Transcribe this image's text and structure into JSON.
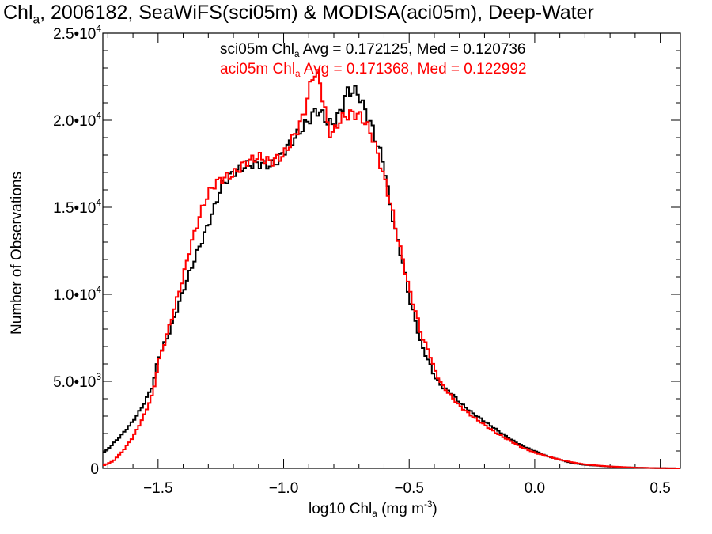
{
  "title": {
    "prefix": "Chl",
    "prefix_sub": "a",
    "rest": ", 2006182, SeaWiFS(sci05m) & MODISA(aci05m), Deep-Water"
  },
  "stats": [
    {
      "pre": "sci05m Chl",
      "sub": "a",
      "post": " Avg = 0.172125, Med = 0.120736",
      "color": "#000000"
    },
    {
      "pre": "aci05m Chl",
      "sub": "a",
      "post": " Avg = 0.171368, Med = 0.122992",
      "color": "#ff0000"
    }
  ],
  "xlabel": {
    "pre": "log10 Chl",
    "sub": "a",
    "mid": " (mg m",
    "sup": "-3",
    "post": ")"
  },
  "ylabel": "Number of Observations",
  "chart_data": {
    "type": "line",
    "step": true,
    "xlim": [
      -1.72,
      0.58
    ],
    "ylim": [
      0,
      25000
    ],
    "xticks": [
      {
        "value": -1.5,
        "label": "−1.5"
      },
      {
        "value": -1.0,
        "label": "−1.0"
      },
      {
        "value": -0.5,
        "label": "−0.5"
      },
      {
        "value": 0.0,
        "label": "0.0"
      },
      {
        "value": 0.5,
        "label": "0.5"
      }
    ],
    "yticks": [
      {
        "value": 0,
        "base": "0",
        "exp": ""
      },
      {
        "value": 5000,
        "base": "5.0•10",
        "exp": "3"
      },
      {
        "value": 10000,
        "base": "1.0•10",
        "exp": "4"
      },
      {
        "value": 15000,
        "base": "1.5•10",
        "exp": "4"
      },
      {
        "value": 20000,
        "base": "2.0•10",
        "exp": "4"
      },
      {
        "value": 25000,
        "base": "2.5•10",
        "exp": "4"
      }
    ],
    "series": [
      {
        "color": "#000000",
        "points": [
          [
            -1.72,
            850
          ],
          [
            -1.68,
            1400
          ],
          [
            -1.64,
            2000
          ],
          [
            -1.6,
            2700
          ],
          [
            -1.56,
            3600
          ],
          [
            -1.52,
            4800
          ],
          [
            -1.5,
            6300
          ],
          [
            -1.45,
            8000
          ],
          [
            -1.4,
            10200
          ],
          [
            -1.35,
            12200
          ],
          [
            -1.3,
            14000
          ],
          [
            -1.27,
            15200
          ],
          [
            -1.25,
            16200
          ],
          [
            -1.2,
            17000
          ],
          [
            -1.15,
            17400
          ],
          [
            -1.1,
            17500
          ],
          [
            -1.05,
            17400
          ],
          [
            -1.02,
            17700
          ],
          [
            -1.0,
            18200
          ],
          [
            -0.95,
            19100
          ],
          [
            -0.9,
            20000
          ],
          [
            -0.87,
            20600
          ],
          [
            -0.85,
            20400
          ],
          [
            -0.82,
            19800
          ],
          [
            -0.8,
            19800
          ],
          [
            -0.77,
            20600
          ],
          [
            -0.75,
            21600
          ],
          [
            -0.72,
            21700
          ],
          [
            -0.7,
            21500
          ],
          [
            -0.68,
            20700
          ],
          [
            -0.65,
            19700
          ],
          [
            -0.63,
            18800
          ],
          [
            -0.6,
            17500
          ],
          [
            -0.58,
            15500
          ],
          [
            -0.55,
            13300
          ],
          [
            -0.52,
            11500
          ],
          [
            -0.5,
            9800
          ],
          [
            -0.47,
            8200
          ],
          [
            -0.45,
            7000
          ],
          [
            -0.42,
            6100
          ],
          [
            -0.4,
            5300
          ],
          [
            -0.37,
            4700
          ],
          [
            -0.33,
            4300
          ],
          [
            -0.3,
            3800
          ],
          [
            -0.25,
            3200
          ],
          [
            -0.2,
            2700
          ],
          [
            -0.15,
            2200
          ],
          [
            -0.1,
            1700
          ],
          [
            -0.05,
            1300
          ],
          [
            0.0,
            1000
          ],
          [
            0.05,
            700
          ],
          [
            0.1,
            500
          ],
          [
            0.15,
            300
          ],
          [
            0.2,
            200
          ],
          [
            0.3,
            100
          ],
          [
            0.4,
            40
          ],
          [
            0.5,
            10
          ],
          [
            0.58,
            0
          ]
        ]
      },
      {
        "color": "#ff0000",
        "points": [
          [
            -1.72,
            150
          ],
          [
            -1.68,
            400
          ],
          [
            -1.64,
            1000
          ],
          [
            -1.6,
            1800
          ],
          [
            -1.56,
            2900
          ],
          [
            -1.52,
            4300
          ],
          [
            -1.5,
            6000
          ],
          [
            -1.45,
            8400
          ],
          [
            -1.4,
            11000
          ],
          [
            -1.37,
            12800
          ],
          [
            -1.33,
            14700
          ],
          [
            -1.3,
            15800
          ],
          [
            -1.27,
            16400
          ],
          [
            -1.25,
            16600
          ],
          [
            -1.2,
            16900
          ],
          [
            -1.15,
            17600
          ],
          [
            -1.1,
            17900
          ],
          [
            -1.05,
            17600
          ],
          [
            -1.0,
            18000
          ],
          [
            -0.95,
            19300
          ],
          [
            -0.92,
            20300
          ],
          [
            -0.9,
            21600
          ],
          [
            -0.88,
            22800
          ],
          [
            -0.86,
            22500
          ],
          [
            -0.84,
            21000
          ],
          [
            -0.82,
            19300
          ],
          [
            -0.8,
            19300
          ],
          [
            -0.78,
            19900
          ],
          [
            -0.76,
            20200
          ],
          [
            -0.73,
            20400
          ],
          [
            -0.7,
            20300
          ],
          [
            -0.68,
            20000
          ],
          [
            -0.65,
            19200
          ],
          [
            -0.63,
            18300
          ],
          [
            -0.6,
            16700
          ],
          [
            -0.57,
            15000
          ],
          [
            -0.55,
            13500
          ],
          [
            -0.52,
            11700
          ],
          [
            -0.5,
            10300
          ],
          [
            -0.47,
            8800
          ],
          [
            -0.45,
            7600
          ],
          [
            -0.42,
            6700
          ],
          [
            -0.4,
            5700
          ],
          [
            -0.37,
            4800
          ],
          [
            -0.33,
            4100
          ],
          [
            -0.3,
            3600
          ],
          [
            -0.25,
            3000
          ],
          [
            -0.2,
            2500
          ],
          [
            -0.15,
            2000
          ],
          [
            -0.1,
            1600
          ],
          [
            -0.05,
            1200
          ],
          [
            0.0,
            900
          ],
          [
            0.05,
            700
          ],
          [
            0.1,
            500
          ],
          [
            0.15,
            350
          ],
          [
            0.2,
            220
          ],
          [
            0.3,
            110
          ],
          [
            0.4,
            40
          ],
          [
            0.5,
            12
          ],
          [
            0.58,
            0
          ]
        ]
      }
    ]
  }
}
